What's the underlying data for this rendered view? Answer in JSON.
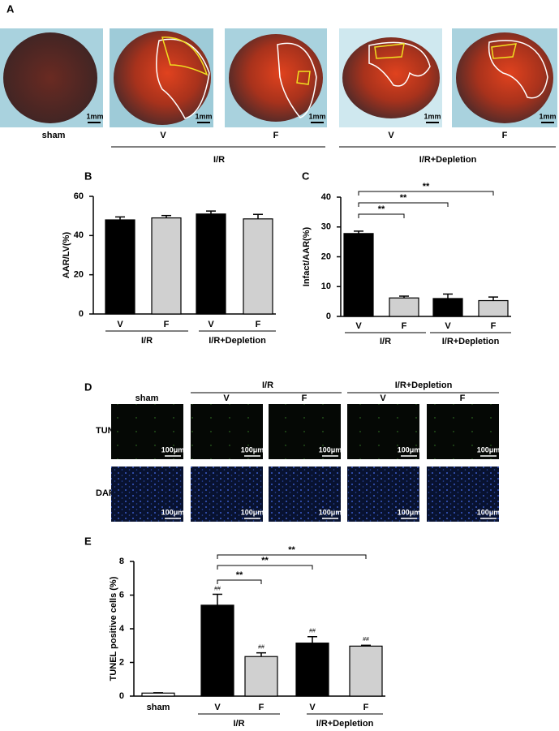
{
  "panel_a": {
    "label": "A",
    "scale_bars": [
      "1mm",
      "1mm",
      "1mm",
      "1mm",
      "1mm"
    ],
    "columns": [
      "sham",
      "V",
      "F",
      "V",
      "F"
    ],
    "groups": [
      "I/R",
      "I/R+Depletion"
    ]
  },
  "panel_d": {
    "label": "D",
    "groups": [
      "I/R",
      "I/R+Depletion"
    ],
    "columns": [
      "sham",
      "V",
      "F",
      "V",
      "F"
    ],
    "rows": [
      "TUNEL",
      "DAPI"
    ],
    "scale_bars": [
      "100μm",
      "100μm",
      "100μm",
      "100μm",
      "100μm",
      "100μm",
      "100μm",
      "100μm",
      "100μm",
      "100μm"
    ]
  },
  "chart_data": [
    {
      "type": "bar",
      "panel": "B",
      "ylabel": "AAR/LV(%)",
      "categories": [
        "V",
        "F",
        "V",
        "F"
      ],
      "groups": [
        "I/R",
        "I/R+Depletion"
      ],
      "values": [
        48,
        49,
        51,
        48.5
      ],
      "errors": [
        1.5,
        1.2,
        1.5,
        2.3
      ],
      "colors": [
        "#000000",
        "#d0d0d0",
        "#000000",
        "#d0d0d0"
      ],
      "ylim": [
        0,
        60
      ],
      "yticks": [
        0,
        20,
        40,
        60
      ]
    },
    {
      "type": "bar",
      "panel": "C",
      "ylabel": "Infact/AAR(%)",
      "categories": [
        "V",
        "F",
        "V",
        "F"
      ],
      "groups": [
        "I/R",
        "I/R+Depletion"
      ],
      "values": [
        27.8,
        6.2,
        6.0,
        5.3
      ],
      "errors": [
        0.8,
        0.6,
        1.5,
        1.2
      ],
      "colors": [
        "#000000",
        "#d0d0d0",
        "#000000",
        "#d0d0d0"
      ],
      "ylim": [
        0,
        40
      ],
      "yticks": [
        0,
        10,
        20,
        30,
        40
      ],
      "annotations": [
        "**",
        "**",
        "**"
      ]
    },
    {
      "type": "bar",
      "panel": "E",
      "ylabel": "TUNEL positive cells (%)",
      "categories": [
        "sham",
        "V",
        "F",
        "V",
        "F"
      ],
      "groups": [
        "I/R",
        "I/R+Depletion"
      ],
      "values": [
        0.18,
        5.4,
        2.35,
        3.15,
        2.97
      ],
      "errors": [
        0.02,
        0.65,
        0.22,
        0.38,
        0.05
      ],
      "colors": [
        "#ffffff",
        "#000000",
        "#d0d0d0",
        "#000000",
        "#d0d0d0"
      ],
      "ylim": [
        0,
        8
      ],
      "yticks": [
        0,
        2,
        4,
        6,
        8
      ],
      "annotations": [
        "**",
        "**",
        "**"
      ],
      "bar_marks": [
        "##",
        "##",
        "##",
        "##"
      ]
    }
  ]
}
